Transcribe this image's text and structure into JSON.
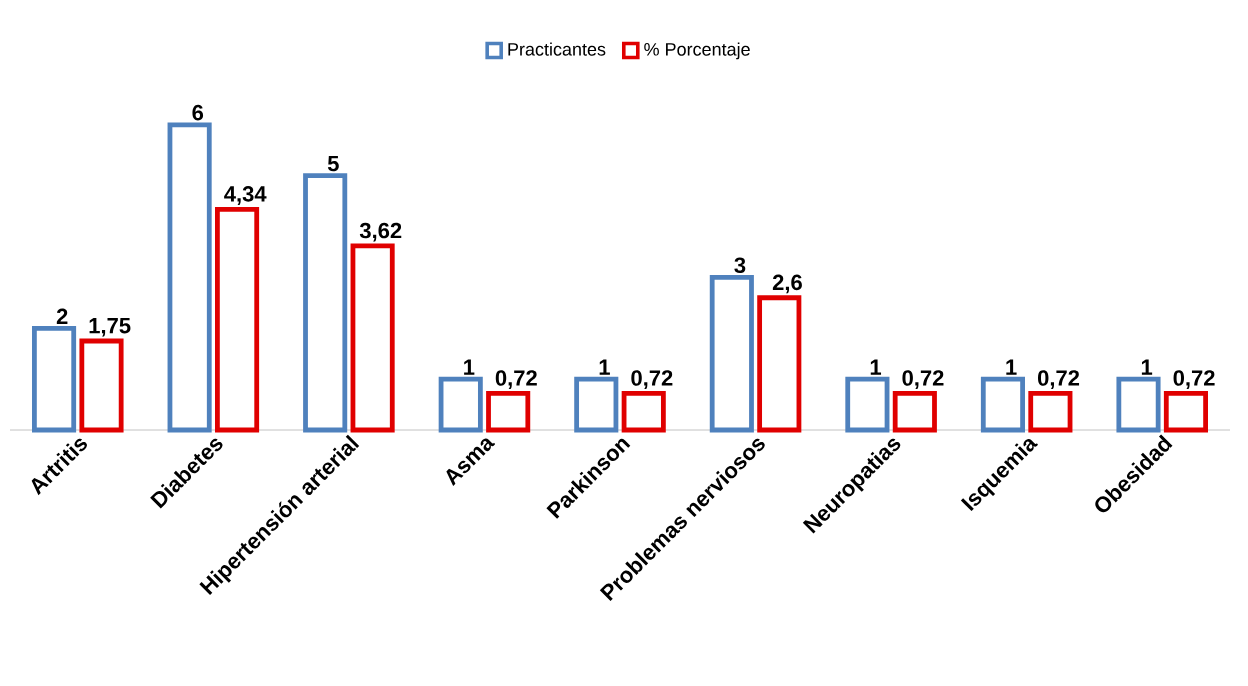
{
  "chart_data": {
    "type": "bar",
    "categories": [
      "Artritis",
      "Diabetes",
      "Hipertensión arterial",
      "Asma",
      "Parkinson",
      "Problemas nerviosos",
      "Neuropatias",
      "Isquemia",
      "Obesidad"
    ],
    "series": [
      {
        "name": "Practicantes",
        "color": "#4f81bd",
        "values": [
          2,
          6,
          5,
          1,
          1,
          3,
          1,
          1,
          1
        ],
        "value_labels": [
          "2",
          "6",
          "5",
          "1",
          "1",
          "3",
          "1",
          "1",
          "1"
        ]
      },
      {
        "name": "% Porcentaje",
        "color": "#e00000",
        "values": [
          1.75,
          4.34,
          3.62,
          0.72,
          0.72,
          2.6,
          0.72,
          0.72,
          0.72
        ],
        "value_labels": [
          "1,75",
          "4,34",
          "3,62",
          "0,72",
          "0,72",
          "2,6",
          "0,72",
          "0,72",
          "0,72"
        ]
      }
    ],
    "data_labels": true,
    "legend": "top"
  }
}
